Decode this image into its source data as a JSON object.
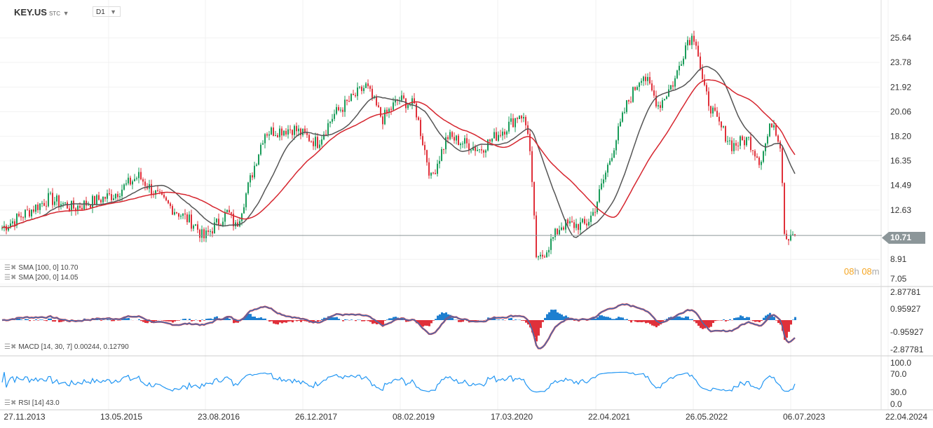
{
  "header": {
    "symbol": "KEY.US",
    "type": "STC",
    "timeframe": "D1"
  },
  "legend": {
    "sma100": "SMA [100,  0] 10.70",
    "sma200": "SMA [200,  0] 14.05",
    "macd": "MACD [14, 30, 7] 0.00244,  0.12790",
    "rsi": "RSI [14] 43.0"
  },
  "last_price": "10.71",
  "timer": {
    "h": "08",
    "hu": "h",
    "m": "08",
    "mu": "m"
  },
  "colors": {
    "up": "#1a9c5a",
    "down": "#e0303a",
    "sma100": "#555555",
    "sma200": "#d6262f",
    "macd": "#1e7fd0",
    "rsi": "#2196f3"
  },
  "chart_data": {
    "type": "candlestick",
    "price_axis": [
      "25.64",
      "23.78",
      "21.92",
      "20.06",
      "18.20",
      "16.35",
      "14.49",
      "12.63",
      "8.91",
      "7.05"
    ],
    "price_range": [
      7.05,
      25.64
    ],
    "macd_axis": [
      "2.87781",
      "0.95927",
      "-0.95927",
      "-2.87781"
    ],
    "rsi_axis": [
      "100.0",
      "70.0",
      "30.0",
      "0.0"
    ],
    "date_axis": [
      "27.11.2013",
      "13.05.2015",
      "23.08.2016",
      "26.12.2017",
      "08.02.2019",
      "17.03.2020",
      "22.04.2021",
      "26.05.2022",
      "06.07.2023",
      "22.04.2024"
    ],
    "date_axis_years": [
      2013.9,
      2015.36,
      2016.64,
      2017.98,
      2019.1,
      2020.2,
      2021.3,
      2022.4,
      2023.51,
      2024.3
    ],
    "approx_close_path": [
      [
        2013.63,
        11.3
      ],
      [
        2014.2,
        13.5
      ],
      [
        2014.5,
        12.8
      ],
      [
        2015.0,
        13.8
      ],
      [
        2015.3,
        15.2
      ],
      [
        2015.6,
        13.3
      ],
      [
        2016.0,
        11.5
      ],
      [
        2016.1,
        10.5
      ],
      [
        2016.4,
        12.5
      ],
      [
        2016.5,
        11.3
      ],
      [
        2016.85,
        18.5
      ],
      [
        2017.2,
        18.8
      ],
      [
        2017.5,
        17.7
      ],
      [
        2017.7,
        19.8
      ],
      [
        2018.1,
        22.0
      ],
      [
        2018.3,
        19.5
      ],
      [
        2018.5,
        21.0
      ],
      [
        2018.7,
        20.5
      ],
      [
        2018.9,
        15.0
      ],
      [
        2019.1,
        18.2
      ],
      [
        2019.5,
        17.2
      ],
      [
        2019.9,
        19.3
      ],
      [
        2020.0,
        20.0
      ],
      [
        2020.1,
        18.5
      ],
      [
        2020.2,
        8.5
      ],
      [
        2020.5,
        11.5
      ],
      [
        2020.8,
        11.5
      ],
      [
        2020.9,
        12.5
      ],
      [
        2021.1,
        16.5
      ],
      [
        2021.3,
        20.5
      ],
      [
        2021.5,
        23.0
      ],
      [
        2021.7,
        20.5
      ],
      [
        2021.9,
        22.5
      ],
      [
        2022.05,
        25.5
      ],
      [
        2022.15,
        25.8
      ],
      [
        2022.25,
        21.8
      ],
      [
        2022.4,
        19.5
      ],
      [
        2022.6,
        17.5
      ],
      [
        2022.8,
        18.0
      ],
      [
        2022.95,
        16.3
      ],
      [
        2023.1,
        19.5
      ],
      [
        2023.2,
        17.5
      ],
      [
        2023.25,
        10.5
      ],
      [
        2023.35,
        11.0
      ],
      [
        2023.45,
        9.3
      ],
      [
        2023.6,
        12.5
      ],
      [
        2023.65,
        10.71
      ]
    ]
  }
}
